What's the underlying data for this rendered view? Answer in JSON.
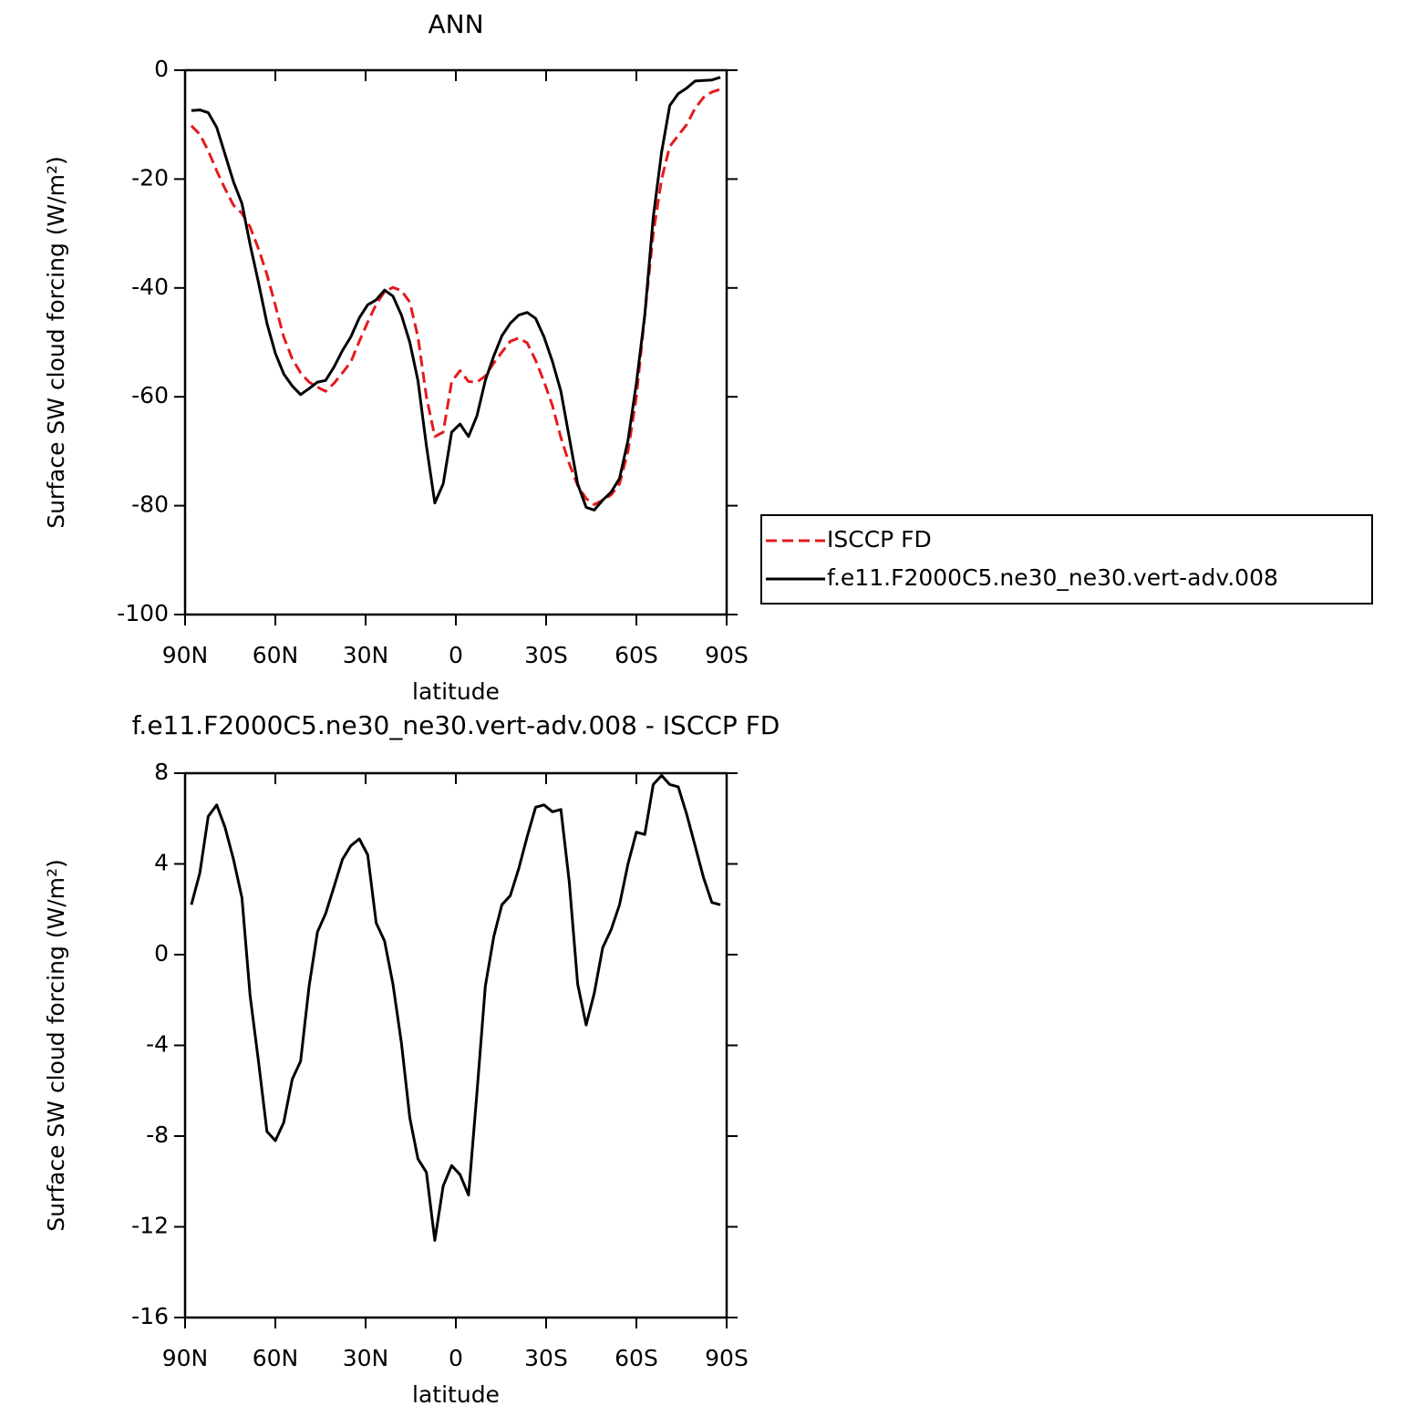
{
  "chart_data": [
    {
      "type": "line",
      "title": "ANN",
      "xlabel": "latitude",
      "ylabel": "Surface SW cloud forcing (W/m²)",
      "x": [
        87.9,
        85.1,
        82.3,
        79.5,
        76.7,
        73.9,
        71.1,
        68.4,
        65.6,
        62.8,
        60.0,
        57.2,
        54.4,
        51.6,
        48.8,
        46.0,
        43.3,
        40.5,
        37.7,
        34.9,
        32.1,
        29.3,
        26.5,
        23.7,
        20.9,
        18.1,
        15.3,
        12.6,
        9.8,
        7.0,
        4.2,
        1.4,
        -1.4,
        -4.2,
        -7.0,
        -9.8,
        -12.6,
        -15.3,
        -18.1,
        -20.9,
        -23.7,
        -26.5,
        -29.3,
        -32.1,
        -34.9,
        -37.7,
        -40.5,
        -43.3,
        -46.0,
        -48.8,
        -51.6,
        -54.4,
        -57.2,
        -60.0,
        -62.8,
        -65.6,
        -68.4,
        -71.1,
        -73.9,
        -76.7,
        -79.5,
        -82.3,
        -85.1,
        -87.9
      ],
      "series": [
        {
          "name": "ISCCP FD",
          "color": "#e41a1c",
          "style": "dashed",
          "values": [
            -10.2,
            -11.8,
            -14.8,
            -18.5,
            -21.8,
            -24.8,
            -26.3,
            -28.8,
            -32.8,
            -37.5,
            -43.2,
            -49,
            -53,
            -55.6,
            -57.3,
            -58.2,
            -59,
            -57.5,
            -55.6,
            -53.6,
            -49.8,
            -46.3,
            -43,
            -40.7,
            -39.9,
            -40.5,
            -42.6,
            -49,
            -60,
            -67.3,
            -66.5,
            -57.2,
            -55.2,
            -57.2,
            -57.3,
            -56.2,
            -53.8,
            -51.8,
            -49.8,
            -49.2,
            -50.1,
            -53.3,
            -57.2,
            -61.6,
            -67.5,
            -72.3,
            -76.3,
            -78.7,
            -79.8,
            -79,
            -78,
            -76,
            -70,
            -60,
            -45,
            -30,
            -20,
            -14,
            -12,
            -10,
            -7,
            -5,
            -4,
            -3.5
          ]
        },
        {
          "name": "f.e11.F2000C5.ne30_ne30.vert-adv.008",
          "color": "#000000",
          "style": "solid",
          "values": [
            -7.4,
            -7.3,
            -7.8,
            -10.5,
            -15.5,
            -20.5,
            -24.5,
            -32,
            -39,
            -46.5,
            -52,
            -55.8,
            -58,
            -59.6,
            -58.5,
            -57.3,
            -57,
            -54.5,
            -51.5,
            -49,
            -45.5,
            -43.1,
            -42.2,
            -40.4,
            -41.5,
            -45,
            -50,
            -57,
            -69,
            -79.5,
            -76,
            -66.5,
            -65,
            -67.3,
            -63.5,
            -57,
            -52.5,
            -48.8,
            -46.5,
            -45,
            -44.5,
            -45.6,
            -49,
            -53.5,
            -59,
            -67.5,
            -76,
            -80.3,
            -80.8,
            -79,
            -77.5,
            -75,
            -68,
            -57.5,
            -45,
            -27,
            -15,
            -6.5,
            -4.3,
            -3.3,
            -2,
            -1.9,
            -1.8,
            -1.3
          ]
        }
      ],
      "xlim": [
        90,
        -90
      ],
      "xticks": [
        {
          "value": 90,
          "label": "90N"
        },
        {
          "value": 60,
          "label": "60N"
        },
        {
          "value": 30,
          "label": "30N"
        },
        0,
        {
          "value": -30,
          "label": "30S"
        },
        {
          "value": -60,
          "label": "60S"
        },
        {
          "value": -90,
          "label": "90S"
        }
      ],
      "ylim": [
        -100,
        0
      ],
      "yticks": [
        0,
        -20,
        -40,
        -60,
        -80,
        -100
      ],
      "legend": "right"
    },
    {
      "type": "line",
      "title": "f.e11.F2000C5.ne30_ne30.vert-adv.008 - ISCCP FD",
      "xlabel": "latitude",
      "ylabel": "Surface SW cloud forcing (W/m²)",
      "x": [
        87.9,
        85.1,
        82.3,
        79.5,
        76.7,
        73.9,
        71.1,
        68.4,
        65.6,
        62.8,
        60.0,
        57.2,
        54.4,
        51.6,
        48.8,
        46.0,
        43.3,
        40.5,
        37.7,
        34.9,
        32.1,
        29.3,
        26.5,
        23.7,
        20.9,
        18.1,
        15.3,
        12.6,
        9.8,
        7.0,
        4.2,
        1.4,
        -1.4,
        -4.2,
        -7.0,
        -9.8,
        -12.6,
        -15.3,
        -18.1,
        -20.9,
        -23.7,
        -26.5,
        -29.3,
        -32.1,
        -34.9,
        -37.7,
        -40.5,
        -43.3,
        -46.0,
        -48.8,
        -51.6,
        -54.4,
        -57.2,
        -60.0,
        -62.8,
        -65.6,
        -68.4,
        -71.1,
        -73.9,
        -76.7,
        -79.5,
        -82.3,
        -85.1,
        -87.9
      ],
      "color": "#000000",
      "values": [
        2.2,
        3.6,
        6.1,
        6.6,
        5.6,
        4.2,
        2.5,
        -1.8,
        -4.7,
        -7.8,
        -8.2,
        -7.4,
        -5.5,
        -4.7,
        -1.4,
        1,
        1.8,
        3,
        4.2,
        4.8,
        5.1,
        4.4,
        1.4,
        0.6,
        -1.3,
        -3.9,
        -7.2,
        -9,
        -9.6,
        -12.6,
        -10.2,
        -9.3,
        -9.7,
        -10.6,
        -6.1,
        -1.4,
        0.8,
        2.2,
        2.6,
        3.8,
        5.2,
        6.5,
        6.6,
        6.3,
        6.4,
        3.2,
        -1.3,
        -3.1,
        -1.7,
        0.3,
        1.1,
        2.2,
        4,
        5.4,
        5.3,
        7.5,
        7.9,
        7.5,
        7.4,
        6.2,
        4.8,
        3.4,
        2.3,
        2.2
      ],
      "xlim": [
        90,
        -90
      ],
      "xticks": [
        {
          "value": 90,
          "label": "90N"
        },
        {
          "value": 60,
          "label": "60N"
        },
        {
          "value": 30,
          "label": "30N"
        },
        0,
        {
          "value": -30,
          "label": "30S"
        },
        {
          "value": -60,
          "label": "60S"
        },
        {
          "value": -90,
          "label": "90S"
        }
      ],
      "ylim": [
        -16,
        8
      ],
      "yticks": [
        8,
        4,
        0,
        -4,
        -8,
        -12,
        -16
      ]
    }
  ]
}
